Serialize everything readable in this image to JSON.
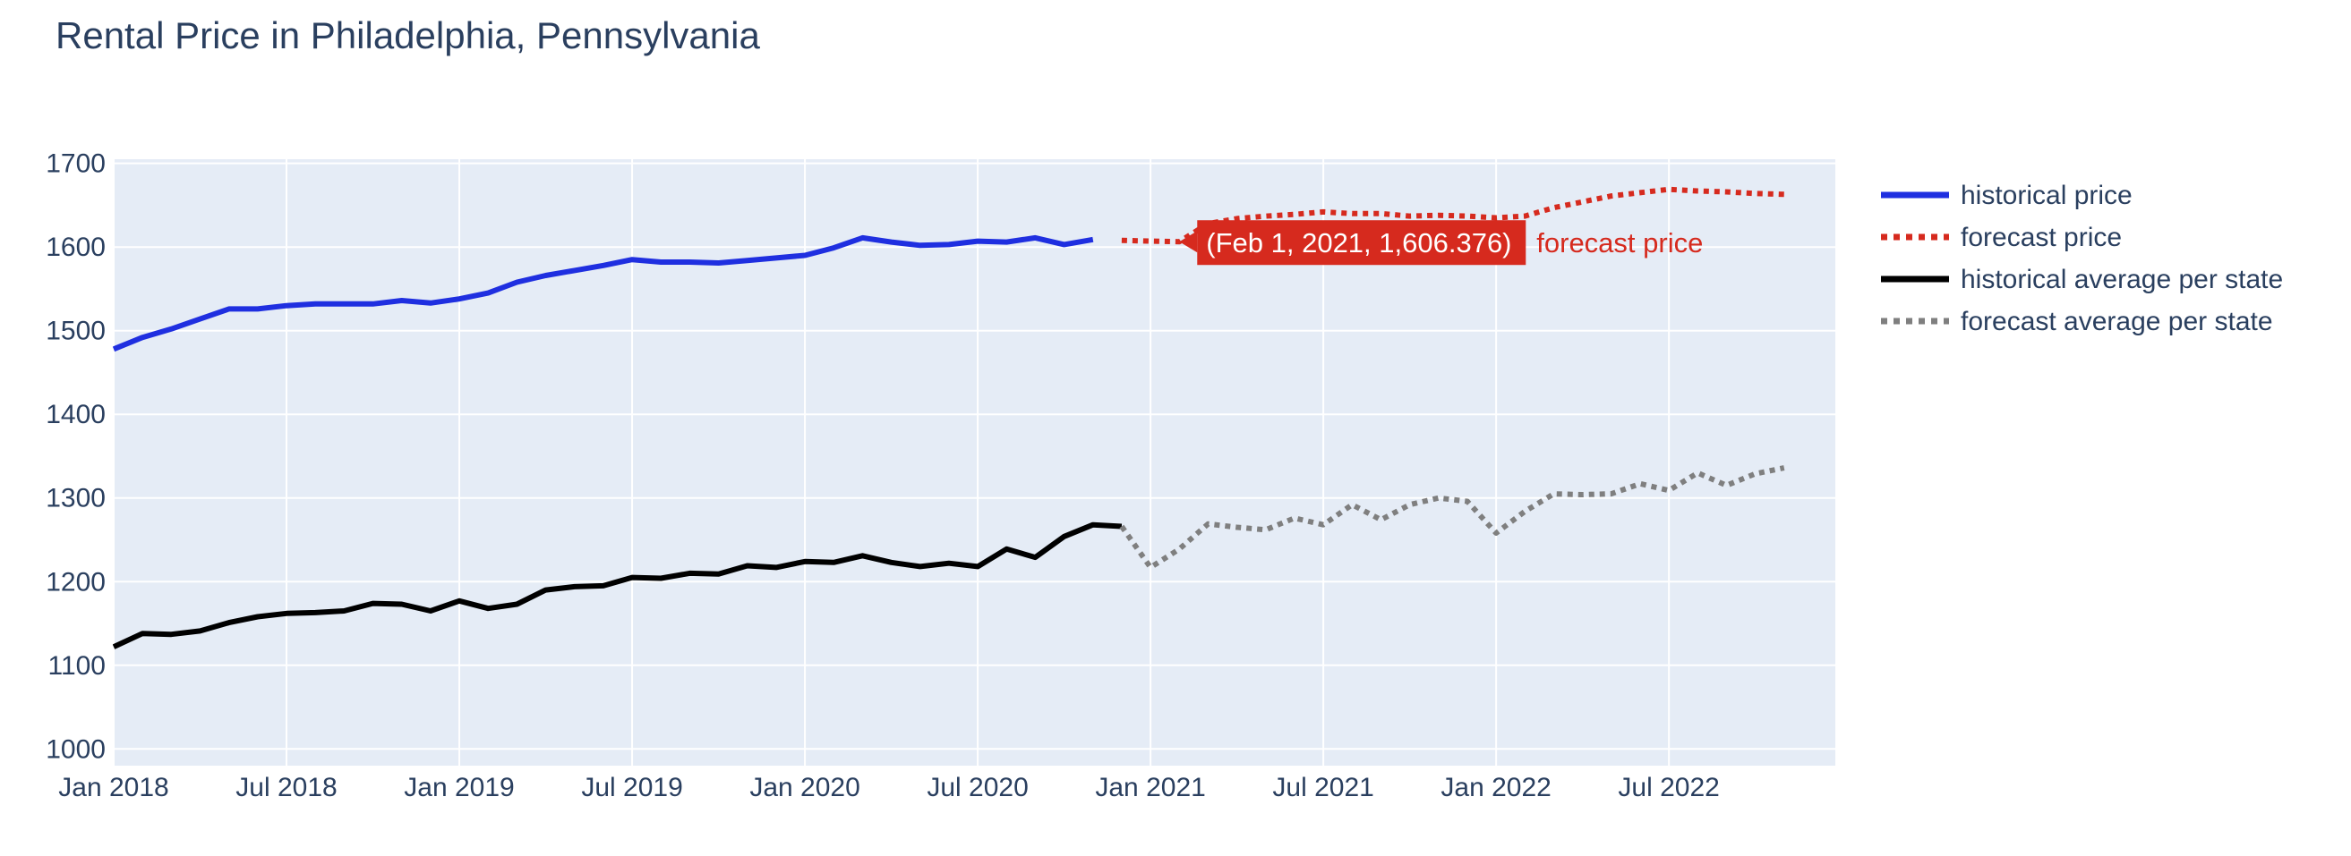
{
  "chart_data": {
    "type": "line",
    "title": "Rental Price in Philadelphia, Pennsylvania",
    "xlabel": "",
    "ylabel": "",
    "xlim": [
      "2018-01-01",
      "2022-12-01"
    ],
    "ylim": [
      980,
      1705
    ],
    "x_ticks": [
      {
        "date": "2018-01-01",
        "label": "Jan 2018"
      },
      {
        "date": "2018-07-01",
        "label": "Jul 2018"
      },
      {
        "date": "2019-01-01",
        "label": "Jan 2019"
      },
      {
        "date": "2019-07-01",
        "label": "Jul 2019"
      },
      {
        "date": "2020-01-01",
        "label": "Jan 2020"
      },
      {
        "date": "2020-07-01",
        "label": "Jul 2020"
      },
      {
        "date": "2021-01-01",
        "label": "Jan 2021"
      },
      {
        "date": "2021-07-01",
        "label": "Jul 2021"
      },
      {
        "date": "2022-01-01",
        "label": "Jan 2022"
      },
      {
        "date": "2022-07-01",
        "label": "Jul 2022"
      }
    ],
    "y_ticks": [
      1000,
      1100,
      1200,
      1300,
      1400,
      1500,
      1600,
      1700
    ],
    "grid": true,
    "legend_position": "right",
    "series": [
      {
        "name": "historical price",
        "color": "#1f2fe0",
        "dash": "solid",
        "points": [
          [
            "2018-01-01",
            1478
          ],
          [
            "2018-02-01",
            1492
          ],
          [
            "2018-03-01",
            1502
          ],
          [
            "2018-04-01",
            1514
          ],
          [
            "2018-05-01",
            1526
          ],
          [
            "2018-06-01",
            1526
          ],
          [
            "2018-07-01",
            1530
          ],
          [
            "2018-08-01",
            1532
          ],
          [
            "2018-09-01",
            1532
          ],
          [
            "2018-10-01",
            1532
          ],
          [
            "2018-11-01",
            1536
          ],
          [
            "2018-12-01",
            1533
          ],
          [
            "2019-01-01",
            1538
          ],
          [
            "2019-02-01",
            1545
          ],
          [
            "2019-03-01",
            1558
          ],
          [
            "2019-04-01",
            1566
          ],
          [
            "2019-05-01",
            1572
          ],
          [
            "2019-06-01",
            1578
          ],
          [
            "2019-07-01",
            1585
          ],
          [
            "2019-08-01",
            1582
          ],
          [
            "2019-09-01",
            1582
          ],
          [
            "2019-10-01",
            1581
          ],
          [
            "2019-11-01",
            1584
          ],
          [
            "2019-12-01",
            1587
          ],
          [
            "2020-01-01",
            1590
          ],
          [
            "2020-02-01",
            1599
          ],
          [
            "2020-03-01",
            1611
          ],
          [
            "2020-04-01",
            1606
          ],
          [
            "2020-05-01",
            1602
          ],
          [
            "2020-06-01",
            1603
          ],
          [
            "2020-07-01",
            1607
          ],
          [
            "2020-08-01",
            1606
          ],
          [
            "2020-09-01",
            1611
          ],
          [
            "2020-10-01",
            1603
          ],
          [
            "2020-11-01",
            1609
          ]
        ]
      },
      {
        "name": "forecast price",
        "color": "#d62a1e",
        "dash": "dot",
        "points": [
          [
            "2020-12-01",
            1608
          ],
          [
            "2021-01-01",
            1607
          ],
          [
            "2021-02-01",
            1606.376
          ],
          [
            "2021-03-01",
            1628
          ],
          [
            "2021-04-01",
            1634
          ],
          [
            "2021-05-01",
            1637
          ],
          [
            "2021-06-01",
            1639
          ],
          [
            "2021-07-01",
            1642
          ],
          [
            "2021-08-01",
            1640
          ],
          [
            "2021-09-01",
            1640
          ],
          [
            "2021-10-01",
            1637
          ],
          [
            "2021-11-01",
            1638
          ],
          [
            "2021-12-01",
            1637
          ],
          [
            "2022-01-01",
            1635
          ],
          [
            "2022-02-01",
            1637
          ],
          [
            "2022-03-01",
            1647
          ],
          [
            "2022-04-01",
            1654
          ],
          [
            "2022-05-01",
            1661
          ],
          [
            "2022-06-01",
            1665
          ],
          [
            "2022-07-01",
            1669
          ],
          [
            "2022-08-01",
            1667
          ],
          [
            "2022-09-01",
            1666
          ],
          [
            "2022-10-01",
            1664
          ],
          [
            "2022-11-01",
            1663
          ]
        ]
      },
      {
        "name": "historical average per state",
        "color": "#000000",
        "dash": "solid",
        "points": [
          [
            "2018-01-01",
            1122
          ],
          [
            "2018-02-01",
            1138
          ],
          [
            "2018-03-01",
            1137
          ],
          [
            "2018-04-01",
            1141
          ],
          [
            "2018-05-01",
            1151
          ],
          [
            "2018-06-01",
            1158
          ],
          [
            "2018-07-01",
            1162
          ],
          [
            "2018-08-01",
            1163
          ],
          [
            "2018-09-01",
            1165
          ],
          [
            "2018-10-01",
            1174
          ],
          [
            "2018-11-01",
            1173
          ],
          [
            "2018-12-01",
            1165
          ],
          [
            "2019-01-01",
            1177
          ],
          [
            "2019-02-01",
            1168
          ],
          [
            "2019-03-01",
            1173
          ],
          [
            "2019-04-01",
            1190
          ],
          [
            "2019-05-01",
            1194
          ],
          [
            "2019-06-01",
            1195
          ],
          [
            "2019-07-01",
            1205
          ],
          [
            "2019-08-01",
            1204
          ],
          [
            "2019-09-01",
            1210
          ],
          [
            "2019-10-01",
            1209
          ],
          [
            "2019-11-01",
            1219
          ],
          [
            "2019-12-01",
            1217
          ],
          [
            "2020-01-01",
            1224
          ],
          [
            "2020-02-01",
            1223
          ],
          [
            "2020-03-01",
            1231
          ],
          [
            "2020-04-01",
            1223
          ],
          [
            "2020-05-01",
            1218
          ],
          [
            "2020-06-01",
            1222
          ],
          [
            "2020-07-01",
            1218
          ],
          [
            "2020-08-01",
            1239
          ],
          [
            "2020-09-01",
            1229
          ],
          [
            "2020-10-01",
            1254
          ],
          [
            "2020-11-01",
            1268
          ],
          [
            "2020-12-01",
            1266
          ]
        ]
      },
      {
        "name": "forecast average per state",
        "color": "#7f7f7f",
        "dash": "dot",
        "points": [
          [
            "2020-12-01",
            1266
          ],
          [
            "2021-01-01",
            1217
          ],
          [
            "2021-02-01",
            1239
          ],
          [
            "2021-03-01",
            1269
          ],
          [
            "2021-04-01",
            1265
          ],
          [
            "2021-05-01",
            1262
          ],
          [
            "2021-06-01",
            1276
          ],
          [
            "2021-07-01",
            1268
          ],
          [
            "2021-08-01",
            1292
          ],
          [
            "2021-09-01",
            1274
          ],
          [
            "2021-10-01",
            1292
          ],
          [
            "2021-11-01",
            1300
          ],
          [
            "2021-12-01",
            1296
          ],
          [
            "2022-01-01",
            1258
          ],
          [
            "2022-02-01",
            1284
          ],
          [
            "2022-03-01",
            1305
          ],
          [
            "2022-04-01",
            1304
          ],
          [
            "2022-05-01",
            1305
          ],
          [
            "2022-06-01",
            1317
          ],
          [
            "2022-07-01",
            1309
          ],
          [
            "2022-08-01",
            1330
          ],
          [
            "2022-09-01",
            1315
          ],
          [
            "2022-10-01",
            1329
          ],
          [
            "2022-11-01",
            1336
          ]
        ]
      }
    ],
    "hover": {
      "text": "(Feb 1, 2021, 1,606.376)",
      "series_name": "forecast price",
      "x": "2021-02-01",
      "y": 1606.376,
      "bg_color": "#d62a1e"
    }
  }
}
